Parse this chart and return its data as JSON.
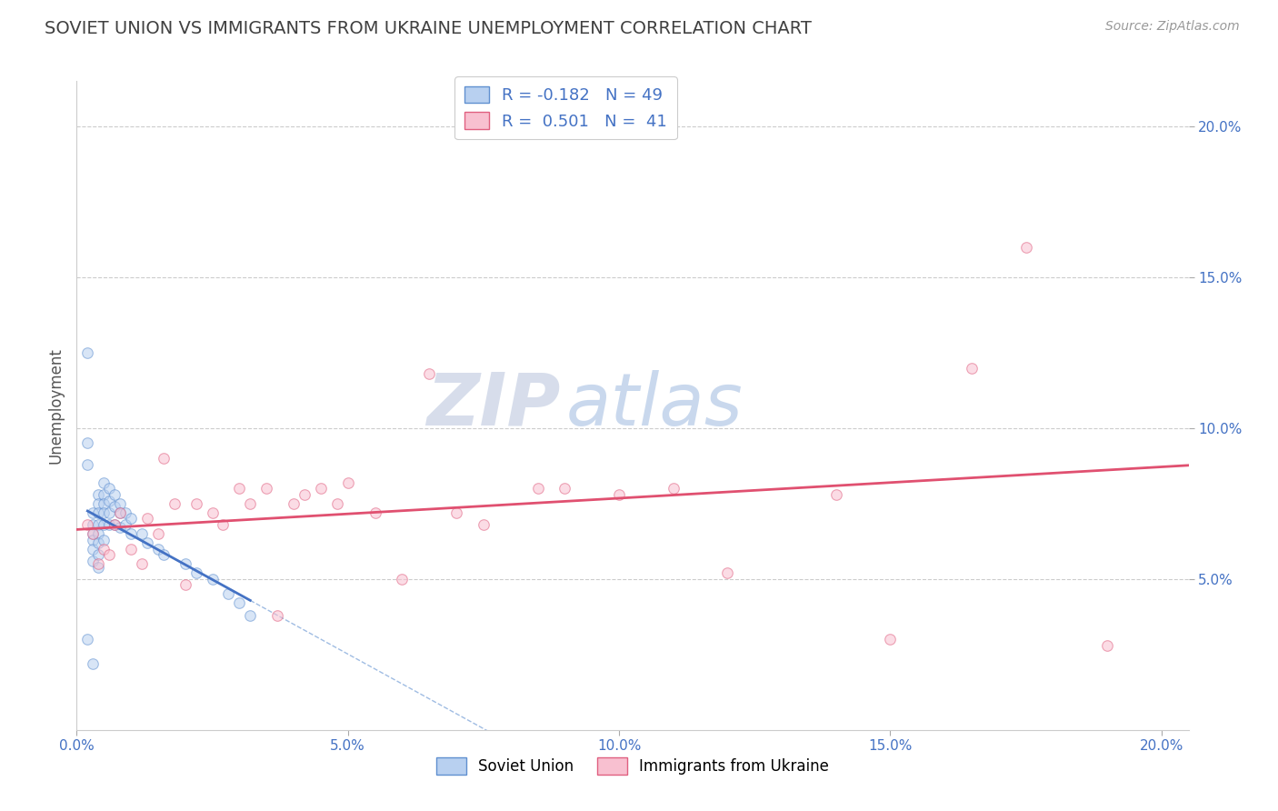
{
  "title": "SOVIET UNION VS IMMIGRANTS FROM UKRAINE UNEMPLOYMENT CORRELATION CHART",
  "source": "Source: ZipAtlas.com",
  "ylabel": "Unemployment",
  "xlim": [
    0.0,
    0.205
  ],
  "ylim": [
    0.0,
    0.215
  ],
  "xtick_labels": [
    "0.0%",
    "5.0%",
    "10.0%",
    "15.0%",
    "20.0%"
  ],
  "xtick_vals": [
    0.0,
    0.05,
    0.1,
    0.15,
    0.2
  ],
  "ytick_labels": [
    "5.0%",
    "10.0%",
    "15.0%",
    "20.0%"
  ],
  "ytick_vals": [
    0.05,
    0.1,
    0.15,
    0.2
  ],
  "legend_entries": [
    {
      "label": "Soviet Union",
      "color": "#b8d0f0",
      "border": "#6090d0",
      "R": "-0.182",
      "N": "49"
    },
    {
      "label": "Immigrants from Ukraine",
      "color": "#f8c0d0",
      "border": "#e06080",
      "R": "0.501",
      "N": "41"
    }
  ],
  "soviet_union_x": [
    0.002,
    0.002,
    0.002,
    0.003,
    0.003,
    0.003,
    0.003,
    0.003,
    0.003,
    0.004,
    0.004,
    0.004,
    0.004,
    0.004,
    0.004,
    0.004,
    0.004,
    0.005,
    0.005,
    0.005,
    0.005,
    0.005,
    0.005,
    0.006,
    0.006,
    0.006,
    0.006,
    0.007,
    0.007,
    0.007,
    0.008,
    0.008,
    0.008,
    0.009,
    0.009,
    0.01,
    0.01,
    0.012,
    0.013,
    0.015,
    0.016,
    0.02,
    0.022,
    0.025,
    0.028,
    0.03,
    0.032,
    0.002,
    0.003
  ],
  "soviet_union_y": [
    0.125,
    0.095,
    0.088,
    0.072,
    0.068,
    0.065,
    0.063,
    0.06,
    0.056,
    0.078,
    0.075,
    0.072,
    0.068,
    0.065,
    0.062,
    0.058,
    0.054,
    0.082,
    0.078,
    0.075,
    0.072,
    0.068,
    0.063,
    0.08,
    0.076,
    0.072,
    0.068,
    0.078,
    0.074,
    0.068,
    0.075,
    0.072,
    0.067,
    0.072,
    0.068,
    0.07,
    0.065,
    0.065,
    0.062,
    0.06,
    0.058,
    0.055,
    0.052,
    0.05,
    0.045,
    0.042,
    0.038,
    0.03,
    0.022
  ],
  "ukraine_x": [
    0.002,
    0.003,
    0.004,
    0.005,
    0.006,
    0.007,
    0.008,
    0.01,
    0.012,
    0.013,
    0.015,
    0.016,
    0.018,
    0.02,
    0.022,
    0.025,
    0.027,
    0.03,
    0.032,
    0.035,
    0.037,
    0.04,
    0.042,
    0.045,
    0.048,
    0.05,
    0.055,
    0.06,
    0.065,
    0.07,
    0.075,
    0.085,
    0.09,
    0.1,
    0.11,
    0.12,
    0.14,
    0.15,
    0.165,
    0.175,
    0.19
  ],
  "ukraine_y": [
    0.068,
    0.065,
    0.055,
    0.06,
    0.058,
    0.068,
    0.072,
    0.06,
    0.055,
    0.07,
    0.065,
    0.09,
    0.075,
    0.048,
    0.075,
    0.072,
    0.068,
    0.08,
    0.075,
    0.08,
    0.038,
    0.075,
    0.078,
    0.08,
    0.075,
    0.082,
    0.072,
    0.05,
    0.118,
    0.072,
    0.068,
    0.08,
    0.08,
    0.078,
    0.08,
    0.052,
    0.078,
    0.03,
    0.12,
    0.16,
    0.028
  ],
  "soviet_line_color": "#4472c4",
  "ukraine_line_color": "#e05070",
  "watermark_zip": "ZIP",
  "watermark_atlas": "atlas",
  "background_color": "#ffffff",
  "grid_color": "#cccccc",
  "title_color": "#404040",
  "axis_label_color": "#4472c4",
  "scatter_alpha": 0.55,
  "scatter_size": 70
}
